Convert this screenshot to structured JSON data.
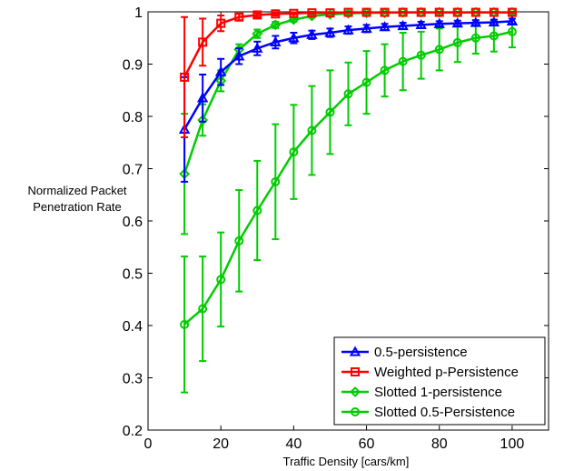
{
  "colors": {
    "blue": "#0000ff",
    "red": "#ff0000",
    "green": "#00cc00",
    "axis": "#000000"
  },
  "chart_data": {
    "type": "line",
    "title": "",
    "xlabel": "Traffic Density [cars/km]",
    "ylabel_lines": [
      "Normalized Packet",
      "Penetration Rate"
    ],
    "xlim": [
      0,
      110
    ],
    "ylim": [
      0.2,
      1
    ],
    "xticks": [
      0,
      20,
      40,
      60,
      80,
      100
    ],
    "yticks": [
      0.2,
      0.3,
      0.4,
      0.5,
      0.6,
      0.7,
      0.8,
      0.9,
      1
    ],
    "x": [
      10,
      15,
      20,
      25,
      30,
      35,
      40,
      45,
      50,
      55,
      60,
      65,
      70,
      75,
      80,
      85,
      90,
      95,
      100
    ],
    "grid": false,
    "legend_position": "bottom-right",
    "series": [
      {
        "name": "0.5-persistence",
        "color": "#0000ff",
        "marker": "triangle",
        "values": [
          0.775,
          0.835,
          0.885,
          0.915,
          0.93,
          0.942,
          0.95,
          0.956,
          0.96,
          0.965,
          0.968,
          0.971,
          0.973,
          0.975,
          0.977,
          0.978,
          0.979,
          0.98,
          0.982
        ],
        "err": [
          0.1,
          0.045,
          0.025,
          0.015,
          0.013,
          0.012,
          0.01,
          0.008,
          0.008,
          0.007,
          0.007,
          0.006,
          0.006,
          0.006,
          0.005,
          0.005,
          0.005,
          0.005,
          0.005
        ]
      },
      {
        "name": "Weighted p-Persistence",
        "color": "#ff0000",
        "marker": "square",
        "values": [
          0.875,
          0.942,
          0.978,
          0.99,
          0.994,
          0.996,
          0.997,
          0.998,
          0.998,
          0.999,
          0.999,
          0.999,
          0.999,
          0.999,
          0.999,
          0.999,
          0.999,
          0.999,
          0.999
        ],
        "err": [
          0.115,
          0.045,
          0.015,
          0.006,
          0.004,
          0.003,
          0.002,
          0.002,
          0.001,
          0.001,
          0.001,
          0.001,
          0.001,
          0.001,
          0.001,
          0.001,
          0.001,
          0.001,
          0.001
        ]
      },
      {
        "name": "Slotted 1-persistence",
        "color": "#00cc00",
        "marker": "diamond",
        "values": [
          0.69,
          0.793,
          0.868,
          0.928,
          0.958,
          0.975,
          0.985,
          0.992,
          0.995,
          0.997,
          0.998,
          0.998,
          0.999,
          0.999,
          0.999,
          0.999,
          0.999,
          0.999,
          0.999
        ],
        "err": [
          0.115,
          0.03,
          0.02,
          0.01,
          0.008,
          0.006,
          0.004,
          0.003,
          0.002,
          0.002,
          0.002,
          0.001,
          0.001,
          0.001,
          0.001,
          0.001,
          0.001,
          0.001,
          0.001
        ]
      },
      {
        "name": "Slotted 0.5-Persistence",
        "color": "#00cc00",
        "marker": "circle",
        "values": [
          0.402,
          0.432,
          0.488,
          0.562,
          0.62,
          0.675,
          0.732,
          0.773,
          0.808,
          0.843,
          0.865,
          0.888,
          0.905,
          0.917,
          0.928,
          0.941,
          0.95,
          0.954,
          0.962
        ],
        "err": [
          0.13,
          0.1,
          0.09,
          0.097,
          0.095,
          0.11,
          0.09,
          0.085,
          0.08,
          0.06,
          0.06,
          0.05,
          0.055,
          0.045,
          0.04,
          0.037,
          0.03,
          0.03,
          0.03
        ]
      }
    ]
  }
}
